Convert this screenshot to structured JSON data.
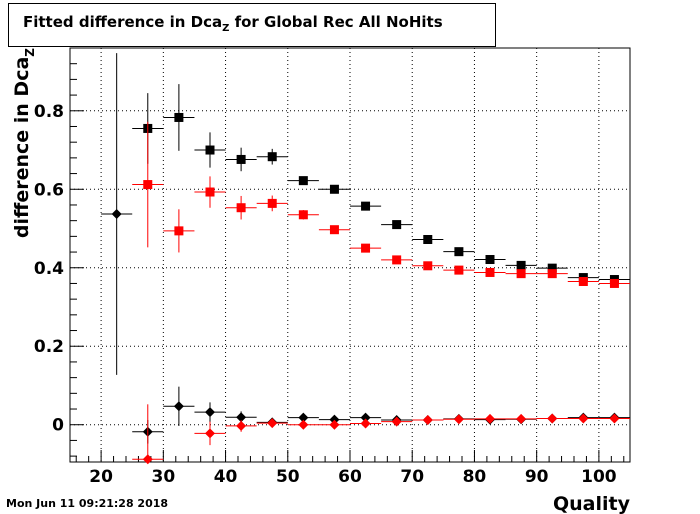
{
  "title": {
    "main": "Fitted difference in Dca",
    "sub": "Z",
    "rest": " for Global Rec All NoHits"
  },
  "timestamp": "Mon Jun 11 09:21:28 2018",
  "chart_data": {
    "type": "scatter",
    "xlabel": "Quality",
    "ylabel_main": "difference in Dca",
    "ylabel_sub": "Z",
    "xlim": [
      15,
      105
    ],
    "ylim": [
      -0.095,
      0.96
    ],
    "xticks": [
      20,
      30,
      40,
      50,
      60,
      70,
      80,
      90,
      100
    ],
    "yticks": [
      0,
      0.2,
      0.4,
      0.6,
      0.8
    ],
    "ytick_labels": [
      "0",
      "0.2",
      "0.4",
      "0.6",
      "0.8"
    ],
    "grid": true,
    "series": [
      {
        "marker": "square",
        "color": "#000000",
        "x_half_width": 2.5,
        "points": [
          {
            "x": 27.5,
            "y": 0.755,
            "err": 0.09
          },
          {
            "x": 32.5,
            "y": 0.783,
            "err": 0.085
          },
          {
            "x": 37.5,
            "y": 0.7,
            "err": 0.045
          },
          {
            "x": 42.5,
            "y": 0.676,
            "err": 0.03
          },
          {
            "x": 47.5,
            "y": 0.683,
            "err": 0.02
          },
          {
            "x": 52.5,
            "y": 0.622,
            "err": 0.01
          },
          {
            "x": 57.5,
            "y": 0.6,
            "err": 0.008
          },
          {
            "x": 62.5,
            "y": 0.557,
            "err": 0.006
          },
          {
            "x": 67.5,
            "y": 0.51,
            "err": 0.005
          },
          {
            "x": 72.5,
            "y": 0.472,
            "err": 0.005
          },
          {
            "x": 77.5,
            "y": 0.441,
            "err": 0.004
          },
          {
            "x": 82.5,
            "y": 0.421,
            "err": 0.004
          },
          {
            "x": 87.5,
            "y": 0.406,
            "err": 0.004
          },
          {
            "x": 92.5,
            "y": 0.399,
            "err": 0.004
          },
          {
            "x": 97.5,
            "y": 0.375,
            "err": 0.004
          },
          {
            "x": 102.5,
            "y": 0.37,
            "err": 0.004
          }
        ]
      },
      {
        "marker": "square",
        "color": "#ff0000",
        "x_half_width": 2.5,
        "points": [
          {
            "x": 27.5,
            "y": 0.612,
            "err": 0.16
          },
          {
            "x": 32.5,
            "y": 0.494,
            "err": 0.055
          },
          {
            "x": 37.5,
            "y": 0.593,
            "err": 0.04
          },
          {
            "x": 42.5,
            "y": 0.553,
            "err": 0.03
          },
          {
            "x": 47.5,
            "y": 0.564,
            "err": 0.02
          },
          {
            "x": 52.5,
            "y": 0.535,
            "err": 0.012
          },
          {
            "x": 57.5,
            "y": 0.497,
            "err": 0.008
          },
          {
            "x": 62.5,
            "y": 0.45,
            "err": 0.006
          },
          {
            "x": 67.5,
            "y": 0.42,
            "err": 0.005
          },
          {
            "x": 72.5,
            "y": 0.405,
            "err": 0.004
          },
          {
            "x": 77.5,
            "y": 0.394,
            "err": 0.004
          },
          {
            "x": 82.5,
            "y": 0.388,
            "err": 0.004
          },
          {
            "x": 87.5,
            "y": 0.385,
            "err": 0.004
          },
          {
            "x": 92.5,
            "y": 0.385,
            "err": 0.004
          },
          {
            "x": 97.5,
            "y": 0.365,
            "err": 0.004
          },
          {
            "x": 102.5,
            "y": 0.36,
            "err": 0.004
          }
        ]
      },
      {
        "marker": "diamond",
        "color": "#000000",
        "x_half_width": 2.5,
        "points": [
          {
            "x": 22.5,
            "y": 0.537,
            "err": 0.41
          },
          {
            "x": 27.5,
            "y": -0.018,
            "err": 0.03
          },
          {
            "x": 32.5,
            "y": 0.047,
            "err": 0.05
          },
          {
            "x": 37.5,
            "y": 0.032,
            "err": 0.025
          },
          {
            "x": 42.5,
            "y": 0.019,
            "err": 0.015
          },
          {
            "x": 47.5,
            "y": 0.006,
            "err": 0.008
          },
          {
            "x": 52.5,
            "y": 0.018,
            "err": 0.006
          },
          {
            "x": 57.5,
            "y": 0.013,
            "err": 0.005
          },
          {
            "x": 62.5,
            "y": 0.018,
            "err": 0.004
          },
          {
            "x": 67.5,
            "y": 0.012,
            "err": 0.004
          },
          {
            "x": 72.5,
            "y": 0.012,
            "err": 0.004
          },
          {
            "x": 77.5,
            "y": 0.015,
            "err": 0.004
          },
          {
            "x": 82.5,
            "y": 0.013,
            "err": 0.004
          },
          {
            "x": 87.5,
            "y": 0.014,
            "err": 0.004
          },
          {
            "x": 92.5,
            "y": 0.016,
            "err": 0.004
          },
          {
            "x": 97.5,
            "y": 0.018,
            "err": 0.004
          },
          {
            "x": 102.5,
            "y": 0.018,
            "err": 0.004
          }
        ]
      },
      {
        "marker": "diamond",
        "color": "#ff0000",
        "x_half_width": 2.5,
        "points": [
          {
            "x": 27.5,
            "y": -0.088,
            "err": 0.14
          },
          {
            "x": 37.5,
            "y": -0.022,
            "err": 0.03
          },
          {
            "x": 42.5,
            "y": -0.003,
            "err": 0.015
          },
          {
            "x": 47.5,
            "y": 0.004,
            "err": 0.008
          },
          {
            "x": 52.5,
            "y": 0.0,
            "err": 0.006
          },
          {
            "x": 57.5,
            "y": 0.0,
            "err": 0.005
          },
          {
            "x": 62.5,
            "y": 0.003,
            "err": 0.004
          },
          {
            "x": 67.5,
            "y": 0.008,
            "err": 0.004
          },
          {
            "x": 72.5,
            "y": 0.012,
            "err": 0.004
          },
          {
            "x": 77.5,
            "y": 0.014,
            "err": 0.004
          },
          {
            "x": 82.5,
            "y": 0.015,
            "err": 0.004
          },
          {
            "x": 87.5,
            "y": 0.015,
            "err": 0.004
          },
          {
            "x": 92.5,
            "y": 0.016,
            "err": 0.004
          },
          {
            "x": 97.5,
            "y": 0.016,
            "err": 0.004
          },
          {
            "x": 102.5,
            "y": 0.016,
            "err": 0.004
          }
        ]
      }
    ]
  }
}
